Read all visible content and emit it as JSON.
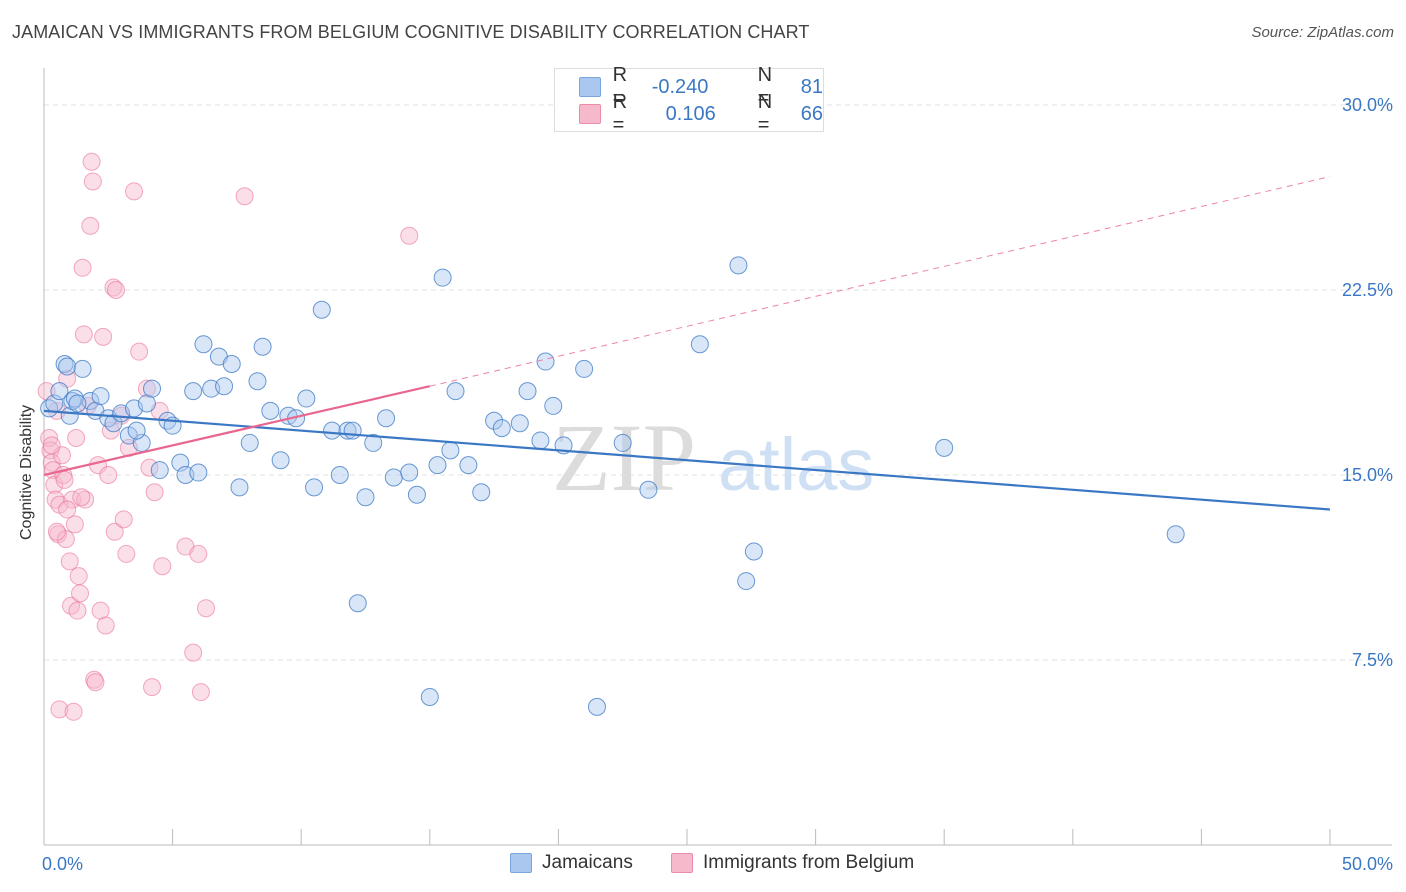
{
  "header": {
    "title": "JAMAICAN VS IMMIGRANTS FROM BELGIUM COGNITIVE DISABILITY CORRELATION CHART",
    "source": "Source: ZipAtlas.com"
  },
  "watermark": {
    "zip": "ZIP",
    "atlas": "atlas"
  },
  "legend": {
    "rows": [
      {
        "r_label": "R =",
        "r_value": "-0.240",
        "n_label": "N =",
        "n_value": "81",
        "color": "#aac8ef"
      },
      {
        "r_label": "R =",
        "r_value": "0.106",
        "n_label": "N =",
        "n_value": "66",
        "color": "#f6b8cb"
      }
    ]
  },
  "bottom_legend": {
    "items": [
      {
        "label": "Jamaicans",
        "color": "#aac8ef"
      },
      {
        "label": "Immigrants from Belgium",
        "color": "#f6b8cb"
      }
    ]
  },
  "chart_data": {
    "type": "scatter",
    "title": "JAMAICAN VS IMMIGRANTS FROM BELGIUM COGNITIVE DISABILITY CORRELATION CHART",
    "xlabel": "",
    "ylabel": "Cognitive Disability",
    "xlim": [
      0,
      50
    ],
    "ylim": [
      0,
      31.5
    ],
    "x_tick_labels": [
      "0.0%",
      "50.0%"
    ],
    "y_ticks": [
      7.5,
      15.0,
      22.5,
      30.0
    ],
    "y_tick_labels": [
      "7.5%",
      "15.0%",
      "22.5%",
      "30.0%"
    ],
    "grid": true,
    "legend_position": "top-center",
    "series": [
      {
        "name": "Jamaicans",
        "color": "#3b78c4",
        "fill": "#aac8ef",
        "r": -0.24,
        "n": 81,
        "trend": {
          "x": [
            0,
            50
          ],
          "y": [
            17.6,
            13.6
          ]
        },
        "points": [
          [
            0.2,
            17.7
          ],
          [
            0.4,
            17.9
          ],
          [
            0.6,
            18.4
          ],
          [
            0.8,
            19.5
          ],
          [
            0.9,
            19.4
          ],
          [
            1.0,
            17.4
          ],
          [
            1.1,
            18.0
          ],
          [
            1.2,
            18.1
          ],
          [
            1.5,
            19.3
          ],
          [
            1.8,
            18.0
          ],
          [
            2.0,
            17.6
          ],
          [
            2.2,
            18.2
          ],
          [
            2.5,
            17.3
          ],
          [
            2.7,
            17.1
          ],
          [
            3.0,
            17.5
          ],
          [
            3.3,
            16.6
          ],
          [
            3.5,
            17.7
          ],
          [
            3.8,
            16.3
          ],
          [
            4.0,
            17.9
          ],
          [
            4.2,
            18.5
          ],
          [
            4.5,
            15.2
          ],
          [
            4.8,
            17.2
          ],
          [
            5.0,
            17.0
          ],
          [
            5.3,
            15.5
          ],
          [
            5.5,
            15.0
          ],
          [
            5.8,
            18.4
          ],
          [
            6.0,
            15.1
          ],
          [
            6.2,
            20.3
          ],
          [
            6.5,
            18.5
          ],
          [
            6.8,
            19.8
          ],
          [
            7.0,
            18.6
          ],
          [
            7.3,
            19.5
          ],
          [
            7.6,
            14.5
          ],
          [
            8.0,
            16.3
          ],
          [
            8.3,
            18.8
          ],
          [
            8.5,
            20.2
          ],
          [
            8.8,
            17.6
          ],
          [
            9.2,
            15.6
          ],
          [
            9.5,
            17.4
          ],
          [
            9.8,
            17.3
          ],
          [
            10.2,
            18.1
          ],
          [
            10.5,
            14.5
          ],
          [
            10.8,
            21.7
          ],
          [
            11.2,
            16.8
          ],
          [
            11.5,
            15.0
          ],
          [
            11.8,
            16.8
          ],
          [
            12.0,
            16.8
          ],
          [
            12.2,
            9.8
          ],
          [
            12.5,
            14.1
          ],
          [
            12.8,
            16.3
          ],
          [
            13.3,
            17.3
          ],
          [
            13.6,
            14.9
          ],
          [
            14.2,
            15.1
          ],
          [
            14.5,
            14.2
          ],
          [
            15.0,
            6.0
          ],
          [
            15.3,
            15.4
          ],
          [
            15.5,
            23.0
          ],
          [
            15.8,
            16.0
          ],
          [
            16.0,
            18.4
          ],
          [
            16.5,
            15.4
          ],
          [
            17.0,
            14.3
          ],
          [
            17.5,
            17.2
          ],
          [
            17.8,
            16.9
          ],
          [
            18.5,
            17.1
          ],
          [
            18.8,
            18.4
          ],
          [
            19.3,
            16.4
          ],
          [
            19.5,
            19.6
          ],
          [
            19.8,
            17.8
          ],
          [
            20.2,
            16.2
          ],
          [
            21.0,
            19.3
          ],
          [
            21.5,
            5.6
          ],
          [
            22.5,
            16.3
          ],
          [
            23.5,
            14.4
          ],
          [
            25.5,
            20.3
          ],
          [
            27.0,
            23.5
          ],
          [
            27.3,
            10.7
          ],
          [
            27.6,
            11.9
          ],
          [
            35.0,
            16.1
          ],
          [
            44.0,
            12.6
          ],
          [
            1.3,
            17.9
          ],
          [
            3.6,
            16.8
          ]
        ]
      },
      {
        "name": "Immigrants from Belgium",
        "color": "#e9678f",
        "fill": "#f6b8cb",
        "r": 0.106,
        "n": 66,
        "trend": {
          "x": [
            0,
            15
          ],
          "y": [
            15.0,
            18.6
          ],
          "dashed_to": {
            "x": 50,
            "y": 27.1
          }
        },
        "points": [
          [
            0.1,
            18.4
          ],
          [
            0.2,
            16.5
          ],
          [
            0.25,
            16.0
          ],
          [
            0.3,
            15.5
          ],
          [
            0.35,
            15.2
          ],
          [
            0.4,
            14.6
          ],
          [
            0.45,
            14.0
          ],
          [
            0.5,
            17.6
          ],
          [
            0.55,
            12.6
          ],
          [
            0.6,
            13.8
          ],
          [
            0.7,
            15.8
          ],
          [
            0.75,
            15.0
          ],
          [
            0.8,
            14.8
          ],
          [
            0.85,
            12.4
          ],
          [
            0.9,
            18.9
          ],
          [
            1.0,
            11.5
          ],
          [
            1.05,
            9.7
          ],
          [
            1.1,
            14.0
          ],
          [
            1.2,
            13.0
          ],
          [
            1.25,
            16.5
          ],
          [
            1.3,
            9.5
          ],
          [
            1.35,
            10.9
          ],
          [
            1.4,
            10.2
          ],
          [
            1.5,
            23.4
          ],
          [
            1.55,
            20.7
          ],
          [
            1.6,
            14.0
          ],
          [
            1.7,
            17.8
          ],
          [
            1.8,
            25.1
          ],
          [
            1.85,
            27.7
          ],
          [
            1.9,
            26.9
          ],
          [
            1.95,
            6.7
          ],
          [
            2.0,
            6.6
          ],
          [
            2.1,
            15.4
          ],
          [
            2.2,
            9.5
          ],
          [
            2.3,
            20.6
          ],
          [
            2.4,
            8.9
          ],
          [
            2.5,
            15.0
          ],
          [
            2.6,
            16.8
          ],
          [
            2.7,
            22.6
          ],
          [
            2.75,
            12.7
          ],
          [
            2.8,
            22.5
          ],
          [
            3.0,
            17.4
          ],
          [
            3.1,
            13.2
          ],
          [
            3.2,
            11.8
          ],
          [
            3.3,
            16.1
          ],
          [
            3.5,
            26.5
          ],
          [
            3.7,
            20.0
          ],
          [
            4.0,
            18.5
          ],
          [
            4.1,
            15.3
          ],
          [
            4.2,
            6.4
          ],
          [
            4.3,
            14.3
          ],
          [
            4.5,
            17.6
          ],
          [
            4.6,
            11.3
          ],
          [
            5.5,
            12.1
          ],
          [
            5.8,
            7.8
          ],
          [
            6.0,
            11.8
          ],
          [
            6.1,
            6.2
          ],
          [
            6.3,
            9.6
          ],
          [
            7.8,
            26.3
          ],
          [
            14.2,
            24.7
          ],
          [
            0.6,
            5.5
          ],
          [
            1.15,
            5.4
          ],
          [
            0.9,
            13.6
          ],
          [
            0.3,
            16.2
          ],
          [
            0.5,
            12.7
          ],
          [
            1.45,
            14.1
          ]
        ]
      }
    ]
  }
}
